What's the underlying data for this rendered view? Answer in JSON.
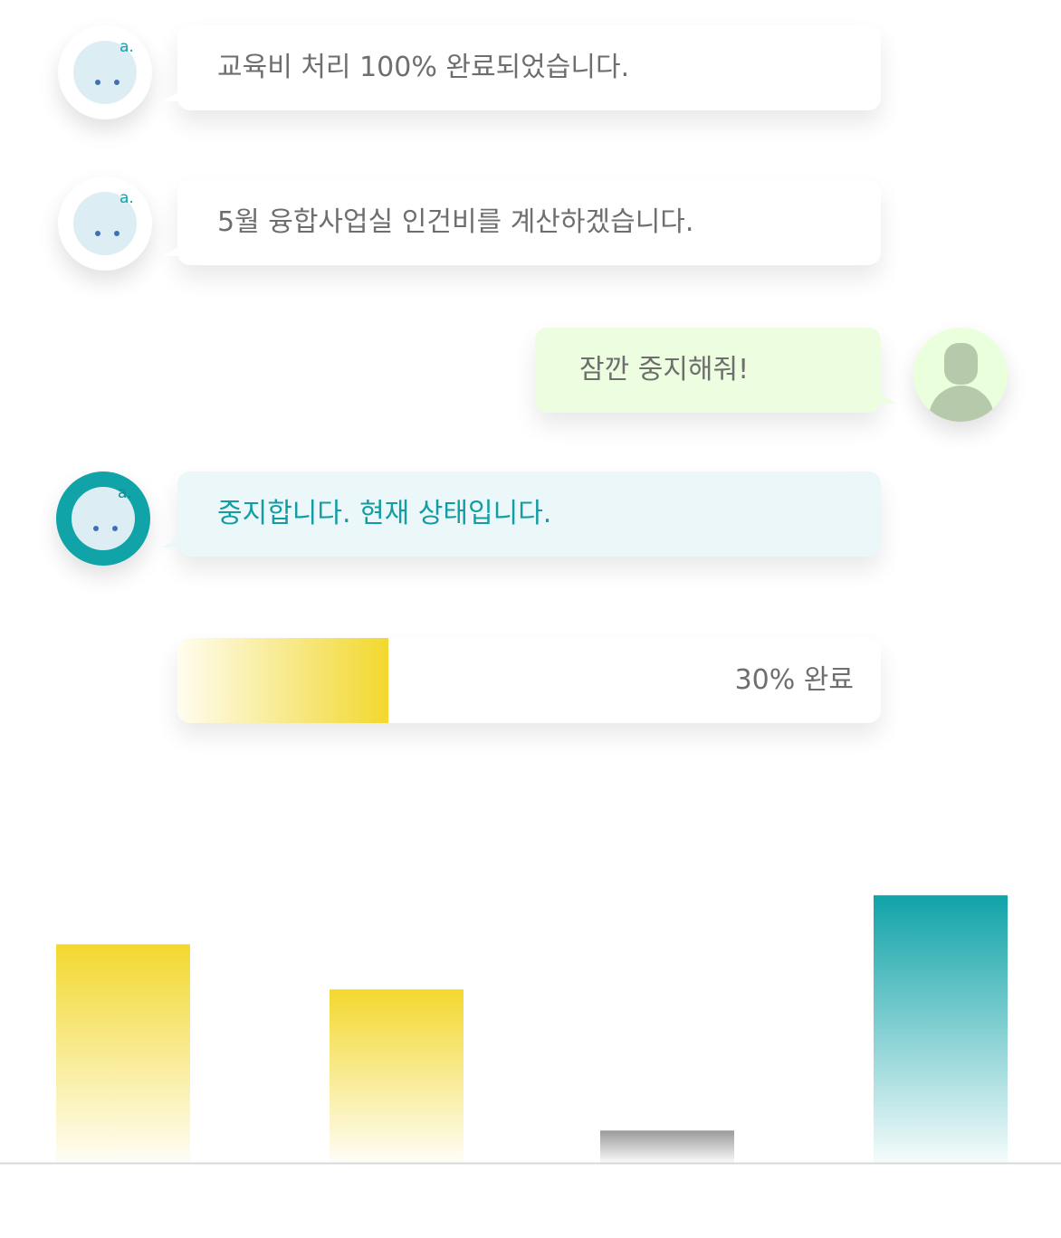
{
  "chat": {
    "messages": [
      {
        "sender": "bot",
        "text": "교육비 처리 100% 완료되었습니다."
      },
      {
        "sender": "bot",
        "text": "5월 융합사업실 인건비를 계산하겠습니다."
      },
      {
        "sender": "user",
        "text": "잠깐 중지해줘!"
      },
      {
        "sender": "bot",
        "text": "중지합니다. 현재 상태입니다."
      }
    ],
    "bot_mark": "a."
  },
  "progress": {
    "percent": 30,
    "label": "30% 완료"
  },
  "chart_data": {
    "type": "bar",
    "categories": [
      "",
      "",
      "",
      ""
    ],
    "values": [
      223,
      177,
      33,
      273
    ],
    "colors": [
      "#f3d82e",
      "#f3d82e",
      "#9a9a9a",
      "#10a3a8"
    ],
    "title": "",
    "xlabel": "",
    "ylabel": "",
    "ylim": [
      0,
      300
    ],
    "grid": false
  }
}
